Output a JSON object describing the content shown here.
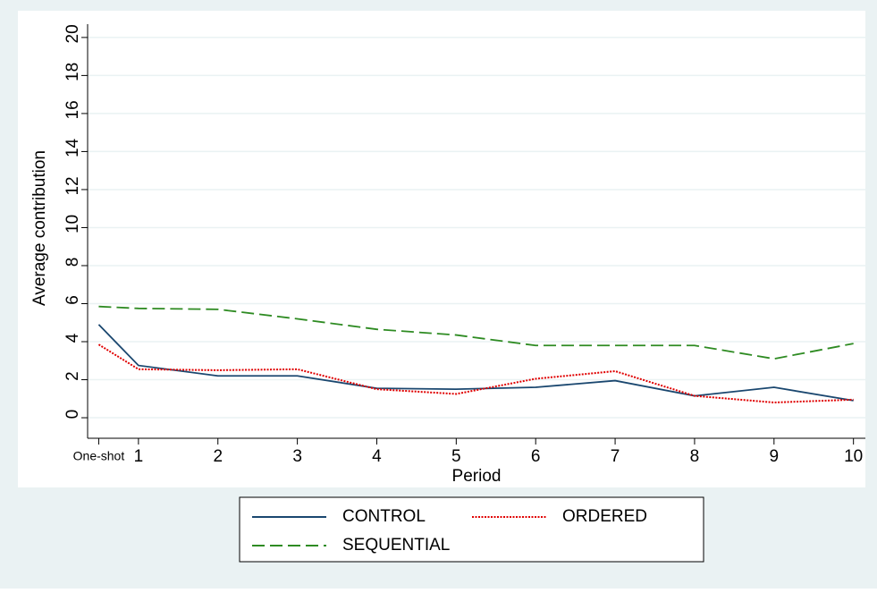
{
  "chart_data": {
    "type": "line",
    "x_label": "Period",
    "y_label": "Average contribution",
    "x": [
      0.5,
      1,
      2,
      3,
      4,
      5,
      6,
      7,
      8,
      9,
      10
    ],
    "xlim": [
      0.36,
      10.15
    ],
    "xticks": [
      {
        "value": 0.5,
        "label": "One-shot"
      },
      1,
      2,
      3,
      4,
      5,
      6,
      7,
      8,
      9,
      10
    ],
    "ylim": [
      -1.08,
      20.7
    ],
    "yticks": [
      0,
      2,
      4,
      6,
      8,
      10,
      12,
      14,
      16,
      18,
      20
    ],
    "grid": true,
    "legend": "bottom",
    "series": [
      {
        "name": "CONTROL",
        "color": "#1a476f",
        "style": "solid",
        "values": [
          4.9,
          2.75,
          2.2,
          2.2,
          1.55,
          1.5,
          1.6,
          1.95,
          1.15,
          1.6,
          0.9
        ]
      },
      {
        "name": "ORDERED",
        "color": "#e00000",
        "style": "dotted",
        "values": [
          3.85,
          2.55,
          2.5,
          2.55,
          1.5,
          1.25,
          2.05,
          2.45,
          1.15,
          0.8,
          0.95
        ]
      },
      {
        "name": "SEQUENTIAL",
        "color": "#2e8b22",
        "style": "dashed",
        "values": [
          5.85,
          5.75,
          5.7,
          5.2,
          4.65,
          4.35,
          3.8,
          3.8,
          3.8,
          3.1,
          3.9
        ]
      }
    ]
  }
}
